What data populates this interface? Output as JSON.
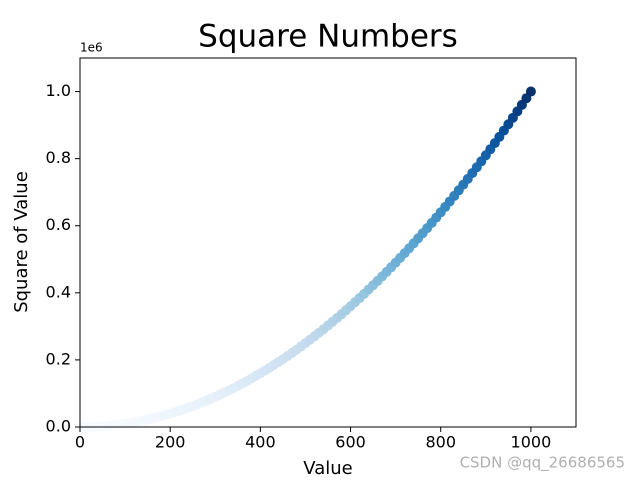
{
  "chart_data": {
    "type": "scatter",
    "title": "Square Numbers",
    "xlabel": "Value",
    "ylabel": "Square of Value",
    "y_offset_label": "1e6",
    "watermark": "CSDN @qq_26686565",
    "x": [
      10,
      20,
      30,
      40,
      50,
      60,
      70,
      80,
      90,
      100,
      110,
      120,
      130,
      140,
      150,
      160,
      170,
      180,
      190,
      200,
      210,
      220,
      230,
      240,
      250,
      260,
      270,
      280,
      290,
      300,
      310,
      320,
      330,
      340,
      350,
      360,
      370,
      380,
      390,
      400,
      410,
      420,
      430,
      440,
      450,
      460,
      470,
      480,
      490,
      500,
      510,
      520,
      530,
      540,
      550,
      560,
      570,
      580,
      590,
      600,
      610,
      620,
      630,
      640,
      650,
      660,
      670,
      680,
      690,
      700,
      710,
      720,
      730,
      740,
      750,
      760,
      770,
      780,
      790,
      800,
      810,
      820,
      830,
      840,
      850,
      860,
      870,
      880,
      890,
      900,
      910,
      920,
      930,
      940,
      950,
      960,
      970,
      980,
      990,
      1000
    ],
    "values": [
      0.0001,
      0.0004,
      0.0009,
      0.0016,
      0.0025,
      0.0036,
      0.0049,
      0.0064,
      0.0081,
      0.01,
      0.0121,
      0.0144,
      0.0169,
      0.0196,
      0.0225,
      0.0256,
      0.0289,
      0.0324,
      0.0361,
      0.04,
      0.0441,
      0.0484,
      0.0529,
      0.0576,
      0.0625,
      0.0676,
      0.0729,
      0.0784,
      0.0841,
      0.09,
      0.0961,
      0.1024,
      0.1089,
      0.1156,
      0.1225,
      0.1296,
      0.1369,
      0.1444,
      0.1521,
      0.16,
      0.1681,
      0.1764,
      0.1849,
      0.1936,
      0.2025,
      0.2116,
      0.2209,
      0.2304,
      0.2401,
      0.25,
      0.2601,
      0.2704,
      0.2809,
      0.2916,
      0.3025,
      0.3136,
      0.3249,
      0.3364,
      0.3481,
      0.36,
      0.3721,
      0.3844,
      0.3969,
      0.4096,
      0.4225,
      0.4356,
      0.4489,
      0.4624,
      0.4761,
      0.49,
      0.5041,
      0.5184,
      0.5329,
      0.5476,
      0.5625,
      0.5776,
      0.5929,
      0.6084,
      0.6241,
      0.64,
      0.6561,
      0.6724,
      0.6889,
      0.7056,
      0.7225,
      0.7396,
      0.7569,
      0.7744,
      0.7921,
      0.81,
      0.8281,
      0.8464,
      0.8649,
      0.8836,
      0.9025,
      0.9216,
      0.9409,
      0.9604,
      0.9801,
      1
    ],
    "colormap": [
      "#f7fbff",
      "#deebf7",
      "#c6dbef",
      "#9ecae1",
      "#6baed6",
      "#4292c6",
      "#2171b5",
      "#08519c",
      "#08306b"
    ],
    "xlim": [
      0,
      1100
    ],
    "ylim": [
      0,
      1.1
    ],
    "xticks": [
      0,
      200,
      400,
      600,
      800,
      1000
    ],
    "yticks": [
      {
        "value": 0,
        "label": "0.0"
      },
      0.2,
      0.4,
      0.6,
      0.8,
      {
        "value": 1,
        "label": "1.0"
      }
    ],
    "grid": false
  }
}
